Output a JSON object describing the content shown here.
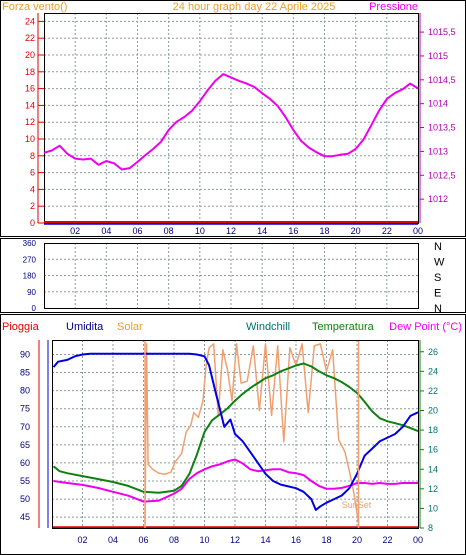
{
  "header": {
    "left_title": "Forza vento()",
    "center_title": "24 hour graph day   22 Aprile 2025",
    "right_title": "Pressione"
  },
  "direction_panel": {
    "compass_labels": [
      "N",
      "W",
      "S",
      "E",
      "N"
    ]
  },
  "bottom_header": {
    "labels": [
      "Pioggia",
      "Umidita",
      "Solar",
      "Windchill",
      "Temperatura",
      "Dew Point (°C)"
    ]
  },
  "annotations": {
    "sunset": "SunSet"
  },
  "colors": {
    "grid": "#8c9c9c",
    "frame": "#000000",
    "title": "#e8a028",
    "magenta": "#ee00ee",
    "red": "#e00000",
    "blue": "#0000e0",
    "solar": "#f0a070",
    "green": "#108010",
    "teal": "#007070",
    "navy": "#000080",
    "pressure_axis": "#b000b0"
  },
  "chart_data": [
    {
      "type": "line",
      "name": "wind-pressure",
      "x_ticks": [
        "02",
        "04",
        "06",
        "08",
        "10",
        "12",
        "14",
        "16",
        "18",
        "20",
        "22",
        "00"
      ],
      "y_left_ticks": [
        "0",
        "2",
        "4",
        "6",
        "8",
        "10",
        "12",
        "14",
        "16",
        "18",
        "20",
        "22",
        "24"
      ],
      "y_left_range": [
        0,
        25
      ],
      "y_right_ticks": [
        "1012",
        "1012,5",
        "1013",
        "1013,5",
        "1014",
        "1014,5",
        "1015",
        "1015,5"
      ],
      "y_right_range": [
        1011.5,
        1015.9
      ],
      "grid": true,
      "wind_speed_values": [
        [
          0,
          0
        ],
        [
          24,
          0
        ]
      ],
      "pressure_values": [
        [
          0,
          1012.97
        ],
        [
          0.5,
          1013.02
        ],
        [
          1.0,
          1013.12
        ],
        [
          1.5,
          1012.95
        ],
        [
          2.0,
          1012.85
        ],
        [
          2.5,
          1012.83
        ],
        [
          3.0,
          1012.85
        ],
        [
          3.5,
          1012.72
        ],
        [
          4.0,
          1012.8
        ],
        [
          4.5,
          1012.75
        ],
        [
          5.0,
          1012.62
        ],
        [
          5.5,
          1012.65
        ],
        [
          6.0,
          1012.78
        ],
        [
          6.5,
          1012.92
        ],
        [
          7.0,
          1013.05
        ],
        [
          7.5,
          1013.2
        ],
        [
          8.0,
          1013.45
        ],
        [
          8.5,
          1013.62
        ],
        [
          9.0,
          1013.72
        ],
        [
          9.5,
          1013.85
        ],
        [
          10.0,
          1014.05
        ],
        [
          10.5,
          1014.28
        ],
        [
          11.0,
          1014.48
        ],
        [
          11.5,
          1014.62
        ],
        [
          12.0,
          1014.55
        ],
        [
          12.5,
          1014.48
        ],
        [
          13.0,
          1014.42
        ],
        [
          13.5,
          1014.35
        ],
        [
          14.0,
          1014.22
        ],
        [
          14.5,
          1014.1
        ],
        [
          15.0,
          1013.95
        ],
        [
          15.5,
          1013.72
        ],
        [
          16.0,
          1013.45
        ],
        [
          16.5,
          1013.22
        ],
        [
          17.0,
          1013.08
        ],
        [
          17.5,
          1012.98
        ],
        [
          18.0,
          1012.9
        ],
        [
          18.5,
          1012.9
        ],
        [
          19.0,
          1012.93
        ],
        [
          19.5,
          1012.95
        ],
        [
          20.0,
          1013.05
        ],
        [
          20.5,
          1013.25
        ],
        [
          21.0,
          1013.55
        ],
        [
          21.5,
          1013.85
        ],
        [
          22.0,
          1014.1
        ],
        [
          22.5,
          1014.22
        ],
        [
          23.0,
          1014.3
        ],
        [
          23.5,
          1014.42
        ],
        [
          24.0,
          1014.32
        ]
      ]
    },
    {
      "type": "scatter",
      "name": "wind-direction",
      "x_ticks": [
        "02",
        "04",
        "06",
        "08",
        "10",
        "12",
        "14",
        "16",
        "18",
        "20",
        "22",
        "00"
      ],
      "y_ticks": [
        "0",
        "90",
        "180",
        "270",
        "360"
      ],
      "y_range": [
        0,
        360
      ],
      "grid": true,
      "values": []
    },
    {
      "type": "line",
      "name": "humidity-temperature",
      "x_ticks": [
        "02",
        "04",
        "06",
        "08",
        "10",
        "12",
        "14",
        "16",
        "18",
        "20",
        "22",
        "00"
      ],
      "y_left_ticks": [
        "45",
        "50",
        "55",
        "60",
        "65",
        "70",
        "75",
        "80",
        "85",
        "90"
      ],
      "y_left_range": [
        42,
        94
      ],
      "y_right_ticks": [
        "8",
        "10",
        "12",
        "14",
        "16",
        "18",
        "20",
        "22",
        "24",
        "26"
      ],
      "y_right_range": [
        8,
        27.2
      ],
      "grid": true,
      "series": [
        {
          "name": "Umidita",
          "axis": "left",
          "values": [
            [
              0.1,
              86.5
            ],
            [
              0.4,
              88
            ],
            [
              1.0,
              88.5
            ],
            [
              1.5,
              89.5
            ],
            [
              2.0,
              90
            ],
            [
              2.5,
              90.2
            ],
            [
              3.0,
              90.2
            ],
            [
              4.0,
              90.2
            ],
            [
              5.0,
              90.2
            ],
            [
              6.0,
              90.2
            ],
            [
              7.0,
              90.2
            ],
            [
              8.0,
              90.2
            ],
            [
              9.0,
              90.2
            ],
            [
              9.5,
              90
            ],
            [
              10.0,
              89.5
            ],
            [
              10.3,
              87
            ],
            [
              10.7,
              80
            ],
            [
              11.0,
              75
            ],
            [
              11.3,
              70
            ],
            [
              11.7,
              72
            ],
            [
              12.0,
              68
            ],
            [
              12.5,
              66
            ],
            [
              13.0,
              63
            ],
            [
              13.5,
              60
            ],
            [
              14.0,
              57
            ],
            [
              14.5,
              55
            ],
            [
              15.0,
              54
            ],
            [
              15.5,
              53.5
            ],
            [
              16.0,
              53
            ],
            [
              16.5,
              52
            ],
            [
              17.0,
              50
            ],
            [
              17.3,
              47
            ],
            [
              17.6,
              48
            ],
            [
              18.0,
              49
            ],
            [
              18.5,
              50
            ],
            [
              19.0,
              51
            ],
            [
              19.5,
              53
            ],
            [
              20.0,
              57
            ],
            [
              20.5,
              62
            ],
            [
              21.0,
              64
            ],
            [
              21.5,
              66
            ],
            [
              22.0,
              67
            ],
            [
              22.5,
              68
            ],
            [
              23.0,
              70
            ],
            [
              23.5,
              73
            ],
            [
              24.0,
              74
            ]
          ]
        },
        {
          "name": "Temperatura",
          "axis": "right",
          "values": [
            [
              0.1,
              14.3
            ],
            [
              0.5,
              13.8
            ],
            [
              1.0,
              13.6
            ],
            [
              2.0,
              13.3
            ],
            [
              3.0,
              13.0
            ],
            [
              4.0,
              12.7
            ],
            [
              5.0,
              12.3
            ],
            [
              6.0,
              11.7
            ],
            [
              7.0,
              11.6
            ],
            [
              8.0,
              11.8
            ],
            [
              8.5,
              12.3
            ],
            [
              9.0,
              13.5
            ],
            [
              9.5,
              15.5
            ],
            [
              10.0,
              17.8
            ],
            [
              10.5,
              19.0
            ],
            [
              11.0,
              19.6
            ],
            [
              11.5,
              20.2
            ],
            [
              12.0,
              21.0
            ],
            [
              12.5,
              21.7
            ],
            [
              13.0,
              22.3
            ],
            [
              13.5,
              22.8
            ],
            [
              14.0,
              23.3
            ],
            [
              14.5,
              23.6
            ],
            [
              15.0,
              24.0
            ],
            [
              15.5,
              24.3
            ],
            [
              16.0,
              24.6
            ],
            [
              16.5,
              24.8
            ],
            [
              17.0,
              24.5
            ],
            [
              17.5,
              24.0
            ],
            [
              18.0,
              23.6
            ],
            [
              18.5,
              23.3
            ],
            [
              19.0,
              22.9
            ],
            [
              19.5,
              22.4
            ],
            [
              20.0,
              21.8
            ],
            [
              20.5,
              20.9
            ],
            [
              21.0,
              19.9
            ],
            [
              21.5,
              19.2
            ],
            [
              22.0,
              18.9
            ],
            [
              22.5,
              18.7
            ],
            [
              23.0,
              18.5
            ],
            [
              23.5,
              18.2
            ],
            [
              24.0,
              17.9
            ]
          ]
        },
        {
          "name": "Dew Point",
          "axis": "right",
          "values": [
            [
              0.1,
              12.8
            ],
            [
              1.0,
              12.6
            ],
            [
              2.0,
              12.4
            ],
            [
              3.0,
              12.1
            ],
            [
              4.0,
              11.7
            ],
            [
              5.0,
              11.3
            ],
            [
              6.0,
              10.7
            ],
            [
              7.0,
              10.8
            ],
            [
              8.0,
              11.5
            ],
            [
              8.5,
              12.0
            ],
            [
              9.0,
              13.0
            ],
            [
              9.5,
              13.6
            ],
            [
              10.0,
              14.0
            ],
            [
              10.5,
              14.3
            ],
            [
              11.0,
              14.5
            ],
            [
              11.5,
              14.8
            ],
            [
              12.0,
              15.0
            ],
            [
              12.5,
              14.6
            ],
            [
              13.0,
              14.0
            ],
            [
              13.5,
              13.8
            ],
            [
              14.0,
              13.9
            ],
            [
              14.5,
              14.0
            ],
            [
              15.0,
              14.0
            ],
            [
              15.5,
              13.7
            ],
            [
              16.0,
              13.6
            ],
            [
              16.5,
              13.4
            ],
            [
              17.0,
              12.8
            ],
            [
              17.5,
              12.3
            ],
            [
              18.0,
              12.0
            ],
            [
              18.5,
              12.0
            ],
            [
              19.0,
              12.1
            ],
            [
              19.5,
              12.3
            ],
            [
              20.0,
              12.6
            ],
            [
              20.5,
              12.6
            ],
            [
              21.0,
              12.5
            ],
            [
              21.5,
              12.6
            ],
            [
              22.0,
              12.5
            ],
            [
              22.5,
              12.5
            ],
            [
              23.0,
              12.6
            ],
            [
              23.5,
              12.6
            ],
            [
              24.0,
              12.6
            ]
          ]
        },
        {
          "name": "Solar",
          "axis": "right",
          "values": [
            [
              6.1,
              8.5
            ],
            [
              6.2,
              26.8
            ],
            [
              6.3,
              14.5
            ],
            [
              6.6,
              14.0
            ],
            [
              7.0,
              13.6
            ],
            [
              7.4,
              13.5
            ],
            [
              7.8,
              13.7
            ],
            [
              8.1,
              14.8
            ],
            [
              8.5,
              15.6
            ],
            [
              8.8,
              17.8
            ],
            [
              9.1,
              18.5
            ],
            [
              9.3,
              19.8
            ],
            [
              9.6,
              19.3
            ],
            [
              9.9,
              21.0
            ],
            [
              10.1,
              24.5
            ],
            [
              10.3,
              26.4
            ],
            [
              10.6,
              26.8
            ],
            [
              10.9,
              19.5
            ],
            [
              11.2,
              26.2
            ],
            [
              11.5,
              24.2
            ],
            [
              11.8,
              21.0
            ],
            [
              12.1,
              26.8
            ],
            [
              12.4,
              22.8
            ],
            [
              12.8,
              23.0
            ],
            [
              13.2,
              26.6
            ],
            [
              13.6,
              20.0
            ],
            [
              14.0,
              26.8
            ],
            [
              14.4,
              19.5
            ],
            [
              14.8,
              26.6
            ],
            [
              15.2,
              16.8
            ],
            [
              15.6,
              26.4
            ],
            [
              16.0,
              24.6
            ],
            [
              16.4,
              26.8
            ],
            [
              16.8,
              19.8
            ],
            [
              17.2,
              26.6
            ],
            [
              17.6,
              26.8
            ],
            [
              18.0,
              24.0
            ],
            [
              18.4,
              26.2
            ],
            [
              18.8,
              17.0
            ],
            [
              19.2,
              15.8
            ],
            [
              19.5,
              13.8
            ],
            [
              19.8,
              11.5
            ],
            [
              20.1,
              8.5
            ]
          ]
        },
        {
          "name": "Pioggia",
          "axis": "left",
          "values": [
            [
              0,
              42.2
            ],
            [
              24,
              42.2
            ]
          ]
        }
      ]
    }
  ]
}
